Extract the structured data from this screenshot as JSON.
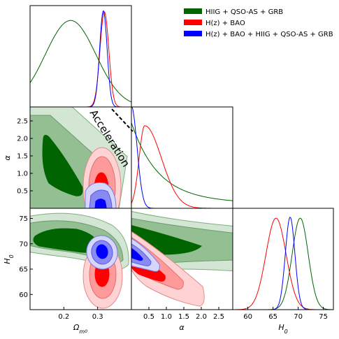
{
  "colors": {
    "green": "#006400",
    "green_mid": "#93bf93",
    "green_light": "#d3e6d3",
    "red": "#ff0000",
    "red_mid": "#ff9a9a",
    "red_light": "#ffd3d3",
    "blue": "#0000ff",
    "blue_mid": "#8a8af5",
    "blue_light": "#d6d6fb"
  },
  "chart_data": {
    "type": "corner",
    "parameters": [
      {
        "key": "om",
        "label": "Ω",
        "sub": "m",
        "subsub": "0",
        "range": [
          0.1,
          0.4
        ],
        "ticks": [
          0.2,
          0.3
        ],
        "tick_labels": [
          "0.2",
          "0.3"
        ]
      },
      {
        "key": "alpha",
        "label": "α",
        "range": [
          0.0,
          2.9
        ],
        "ticks": [
          0.5,
          1.0,
          1.5,
          2.0,
          2.5
        ],
        "tick_labels": [
          "0.5",
          "1.0",
          "1.5",
          "2.0",
          "2.5"
        ]
      },
      {
        "key": "h0",
        "label": "H",
        "sub": "0",
        "range": [
          57,
          77
        ],
        "ticks": [
          60,
          65,
          70,
          75
        ],
        "tick_labels": [
          "60",
          "65",
          "70",
          "75"
        ]
      }
    ],
    "series": [
      {
        "name": "HIIG + QSO-AS + GRB",
        "color": "green",
        "estimates": {
          "om": {
            "mean": 0.22,
            "sigma": 0.075
          },
          "alpha": {
            "peak": 0.0,
            "scale": 1.0
          },
          "h0": {
            "mean": 70.4,
            "sigma": 1.7
          }
        },
        "contours": {
          "om_alpha": {
            "note": "open, degenerate along Acceleration line"
          },
          "om_h0": {
            "note": "banana-shaped"
          },
          "alpha_h0": {
            "note": "open, extends to high alpha"
          }
        }
      },
      {
        "name": "H(z) + BAO",
        "color": "red",
        "estimates": {
          "om": {
            "mean": 0.32,
            "sigma": 0.015
          },
          "alpha": {
            "peak": 0.35,
            "sigma": 0.4
          },
          "h0": {
            "mean": 65.5,
            "sigma": 2.1
          }
        }
      },
      {
        "name": "H(z) + BAO + HIIG + QSO-AS + GRB",
        "color": "blue",
        "estimates": {
          "om": {
            "mean": 0.32,
            "sigma": 0.013
          },
          "alpha": {
            "peak": 0.0,
            "sigma": 0.15
          },
          "h0": {
            "mean": 68.5,
            "sigma": 1.0
          }
        }
      }
    ],
    "annotation": {
      "text": "Acceleration",
      "line_style": "dashed"
    },
    "legend_position": "top-right"
  }
}
